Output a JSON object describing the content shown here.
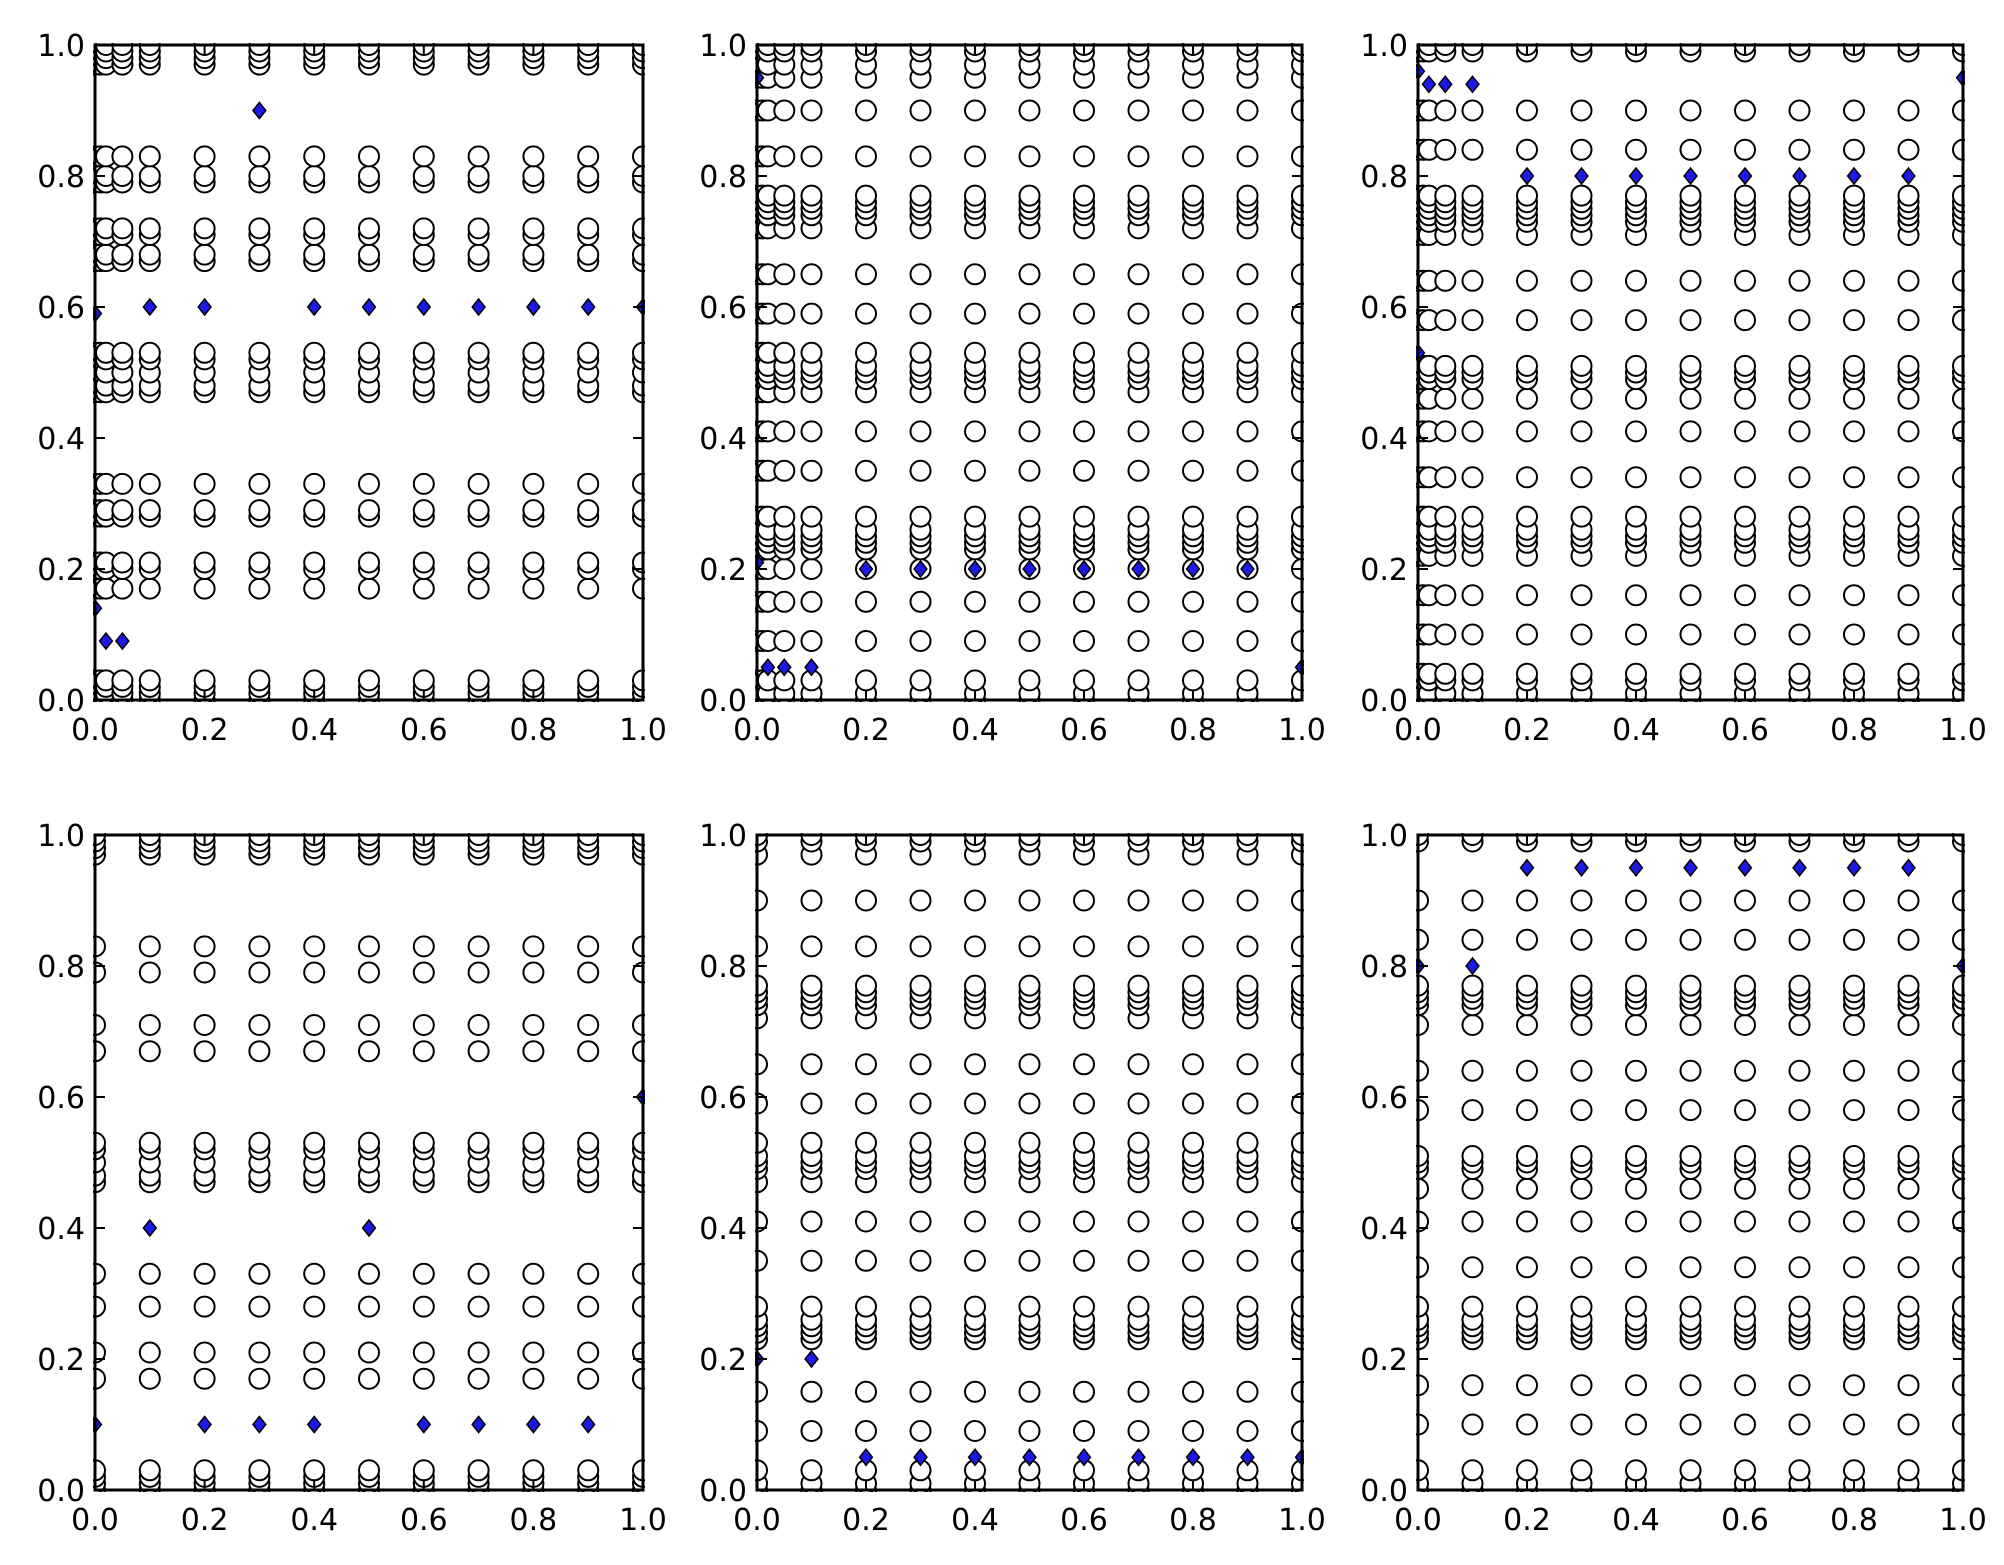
{
  "chart_data": [
    {
      "type": "scatter",
      "title": "",
      "xlabel": "",
      "ylabel": "",
      "xlim": [
        0,
        1
      ],
      "ylim": [
        0,
        1
      ],
      "grid": false,
      "legend": "none",
      "xticks": [
        "0.0",
        "0.2",
        "0.4",
        "0.6",
        "0.8",
        "1.0"
      ],
      "yticks": [
        "0.0",
        "0.2",
        "0.4",
        "0.6",
        "0.8",
        "1.0"
      ],
      "circle_columns": [
        0.0,
        0.01,
        0.02,
        0.05,
        0.1,
        0.2,
        0.3,
        0.4,
        0.5,
        0.6,
        0.7,
        0.8,
        0.9,
        1.0
      ],
      "circle_rows": [
        0.0,
        0.01,
        0.02,
        0.03,
        0.17,
        0.2,
        0.21,
        0.28,
        0.29,
        0.33,
        0.47,
        0.48,
        0.5,
        0.52,
        0.53,
        0.67,
        0.68,
        0.71,
        0.72,
        0.79,
        0.8,
        0.83,
        0.97,
        0.98,
        0.99,
        1.0
      ],
      "highlighted_points": [
        {
          "x": 0.0,
          "y": 0.14
        },
        {
          "x": 0.02,
          "y": 0.09
        },
        {
          "x": 0.05,
          "y": 0.09
        },
        {
          "x": 0.3,
          "y": 0.9
        },
        {
          "x": 0.0,
          "y": 0.59
        },
        {
          "x": 0.1,
          "y": 0.6
        },
        {
          "x": 0.2,
          "y": 0.6
        },
        {
          "x": 0.4,
          "y": 0.6
        },
        {
          "x": 0.5,
          "y": 0.6
        },
        {
          "x": 0.6,
          "y": 0.6
        },
        {
          "x": 0.7,
          "y": 0.6
        },
        {
          "x": 0.8,
          "y": 0.6
        },
        {
          "x": 0.9,
          "y": 0.6
        },
        {
          "x": 1.0,
          "y": 0.6
        }
      ]
    },
    {
      "type": "scatter",
      "title": "",
      "xlabel": "",
      "ylabel": "",
      "xlim": [
        0,
        1
      ],
      "ylim": [
        0,
        1
      ],
      "grid": false,
      "legend": "none",
      "xticks": [
        "0.0",
        "0.2",
        "0.4",
        "0.6",
        "0.8",
        "1.0"
      ],
      "yticks": [
        "0.0",
        "0.2",
        "0.4",
        "0.6",
        "0.8",
        "1.0"
      ],
      "circle_columns": [
        0.0,
        0.01,
        0.02,
        0.05,
        0.1,
        0.2,
        0.3,
        0.4,
        0.5,
        0.6,
        0.7,
        0.8,
        0.9,
        1.0
      ],
      "circle_rows": [
        0.0,
        0.01,
        0.03,
        0.09,
        0.15,
        0.2,
        0.23,
        0.24,
        0.25,
        0.26,
        0.28,
        0.35,
        0.41,
        0.47,
        0.49,
        0.5,
        0.51,
        0.53,
        0.59,
        0.65,
        0.72,
        0.74,
        0.75,
        0.76,
        0.77,
        0.83,
        0.9,
        0.95,
        0.97,
        0.99,
        1.0
      ],
      "highlighted_points": [
        {
          "x": 0.0,
          "y": 0.95
        },
        {
          "x": 0.0,
          "y": 0.21
        },
        {
          "x": 0.02,
          "y": 0.05
        },
        {
          "x": 0.05,
          "y": 0.05
        },
        {
          "x": 0.1,
          "y": 0.05
        },
        {
          "x": 0.2,
          "y": 0.2
        },
        {
          "x": 0.3,
          "y": 0.2
        },
        {
          "x": 0.4,
          "y": 0.2
        },
        {
          "x": 0.5,
          "y": 0.2
        },
        {
          "x": 0.6,
          "y": 0.2
        },
        {
          "x": 0.7,
          "y": 0.2
        },
        {
          "x": 0.8,
          "y": 0.2
        },
        {
          "x": 0.9,
          "y": 0.2
        },
        {
          "x": 1.0,
          "y": 0.05
        }
      ]
    },
    {
      "type": "scatter",
      "title": "",
      "xlabel": "",
      "ylabel": "",
      "xlim": [
        0,
        1
      ],
      "ylim": [
        0,
        1
      ],
      "grid": false,
      "legend": "none",
      "xticks": [
        "0.0",
        "0.2",
        "0.4",
        "0.6",
        "0.8",
        "1.0"
      ],
      "yticks": [
        "0.0",
        "0.2",
        "0.4",
        "0.6",
        "0.8",
        "1.0"
      ],
      "circle_columns": [
        0.0,
        0.01,
        0.02,
        0.05,
        0.1,
        0.2,
        0.3,
        0.4,
        0.5,
        0.6,
        0.7,
        0.8,
        0.9,
        1.0
      ],
      "circle_rows": [
        0.0,
        0.01,
        0.03,
        0.04,
        0.1,
        0.16,
        0.22,
        0.24,
        0.25,
        0.26,
        0.28,
        0.34,
        0.41,
        0.46,
        0.49,
        0.5,
        0.51,
        0.58,
        0.64,
        0.71,
        0.73,
        0.74,
        0.75,
        0.76,
        0.77,
        0.84,
        0.9,
        0.99,
        1.0
      ],
      "highlighted_points": [
        {
          "x": 0.0,
          "y": 0.96
        },
        {
          "x": 0.02,
          "y": 0.94
        },
        {
          "x": 0.05,
          "y": 0.94
        },
        {
          "x": 0.1,
          "y": 0.94
        },
        {
          "x": 0.0,
          "y": 0.53
        },
        {
          "x": 0.2,
          "y": 0.8
        },
        {
          "x": 0.3,
          "y": 0.8
        },
        {
          "x": 0.4,
          "y": 0.8
        },
        {
          "x": 0.5,
          "y": 0.8
        },
        {
          "x": 0.6,
          "y": 0.8
        },
        {
          "x": 0.7,
          "y": 0.8
        },
        {
          "x": 0.8,
          "y": 0.8
        },
        {
          "x": 0.9,
          "y": 0.8
        },
        {
          "x": 1.0,
          "y": 0.95
        }
      ]
    },
    {
      "type": "scatter",
      "title": "",
      "xlabel": "",
      "ylabel": "",
      "xlim": [
        0,
        1
      ],
      "ylim": [
        0,
        1
      ],
      "grid": false,
      "legend": "none",
      "xticks": [
        "0.0",
        "0.2",
        "0.4",
        "0.6",
        "0.8",
        "1.0"
      ],
      "yticks": [
        "0.0",
        "0.2",
        "0.4",
        "0.6",
        "0.8",
        "1.0"
      ],
      "circle_columns": [
        0.0,
        0.1,
        0.2,
        0.3,
        0.4,
        0.5,
        0.6,
        0.7,
        0.8,
        0.9,
        1.0
      ],
      "circle_rows": [
        0.0,
        0.01,
        0.02,
        0.03,
        0.17,
        0.21,
        0.28,
        0.33,
        0.47,
        0.48,
        0.5,
        0.52,
        0.53,
        0.67,
        0.71,
        0.79,
        0.83,
        0.97,
        0.98,
        0.99,
        1.0
      ],
      "highlighted_points": [
        {
          "x": 0.0,
          "y": 0.1
        },
        {
          "x": 0.1,
          "y": 0.4
        },
        {
          "x": 0.2,
          "y": 0.1
        },
        {
          "x": 0.3,
          "y": 0.1
        },
        {
          "x": 0.4,
          "y": 0.1
        },
        {
          "x": 0.5,
          "y": 0.4
        },
        {
          "x": 0.6,
          "y": 0.1
        },
        {
          "x": 0.7,
          "y": 0.1
        },
        {
          "x": 0.8,
          "y": 0.1
        },
        {
          "x": 0.9,
          "y": 0.1
        },
        {
          "x": 1.0,
          "y": 0.6
        }
      ]
    },
    {
      "type": "scatter",
      "title": "",
      "xlabel": "",
      "ylabel": "",
      "xlim": [
        0,
        1
      ],
      "ylim": [
        0,
        1
      ],
      "grid": false,
      "legend": "none",
      "xticks": [
        "0.0",
        "0.2",
        "0.4",
        "0.6",
        "0.8",
        "1.0"
      ],
      "yticks": [
        "0.0",
        "0.2",
        "0.4",
        "0.6",
        "0.8",
        "1.0"
      ],
      "circle_columns": [
        0.0,
        0.1,
        0.2,
        0.3,
        0.4,
        0.5,
        0.6,
        0.7,
        0.8,
        0.9,
        1.0
      ],
      "circle_rows": [
        0.0,
        0.01,
        0.03,
        0.09,
        0.15,
        0.23,
        0.24,
        0.25,
        0.26,
        0.28,
        0.35,
        0.41,
        0.47,
        0.49,
        0.5,
        0.51,
        0.53,
        0.59,
        0.65,
        0.72,
        0.74,
        0.75,
        0.76,
        0.77,
        0.83,
        0.9,
        0.97,
        0.99,
        1.0
      ],
      "highlighted_points": [
        {
          "x": 0.0,
          "y": 0.2
        },
        {
          "x": 0.1,
          "y": 0.2
        },
        {
          "x": 0.2,
          "y": 0.05
        },
        {
          "x": 0.3,
          "y": 0.05
        },
        {
          "x": 0.4,
          "y": 0.05
        },
        {
          "x": 0.5,
          "y": 0.05
        },
        {
          "x": 0.6,
          "y": 0.05
        },
        {
          "x": 0.7,
          "y": 0.05
        },
        {
          "x": 0.8,
          "y": 0.05
        },
        {
          "x": 0.9,
          "y": 0.05
        },
        {
          "x": 1.0,
          "y": 0.05
        }
      ]
    },
    {
      "type": "scatter",
      "title": "",
      "xlabel": "",
      "ylabel": "",
      "xlim": [
        0,
        1
      ],
      "ylim": [
        0,
        1
      ],
      "grid": false,
      "legend": "none",
      "xticks": [
        "0.0",
        "0.2",
        "0.4",
        "0.6",
        "0.8",
        "1.0"
      ],
      "yticks": [
        "0.0",
        "0.2",
        "0.4",
        "0.6",
        "0.8",
        "1.0"
      ],
      "circle_columns": [
        0.0,
        0.1,
        0.2,
        0.3,
        0.4,
        0.5,
        0.6,
        0.7,
        0.8,
        0.9,
        1.0
      ],
      "circle_rows": [
        0.0,
        0.01,
        0.03,
        0.1,
        0.16,
        0.23,
        0.24,
        0.25,
        0.26,
        0.28,
        0.34,
        0.41,
        0.46,
        0.49,
        0.5,
        0.51,
        0.58,
        0.64,
        0.71,
        0.74,
        0.75,
        0.76,
        0.77,
        0.84,
        0.9,
        0.99,
        1.0
      ],
      "highlighted_points": [
        {
          "x": 0.0,
          "y": 0.8
        },
        {
          "x": 0.1,
          "y": 0.8
        },
        {
          "x": 0.2,
          "y": 0.95
        },
        {
          "x": 0.3,
          "y": 0.95
        },
        {
          "x": 0.4,
          "y": 0.95
        },
        {
          "x": 0.5,
          "y": 0.95
        },
        {
          "x": 0.6,
          "y": 0.95
        },
        {
          "x": 0.7,
          "y": 0.95
        },
        {
          "x": 0.8,
          "y": 0.95
        },
        {
          "x": 0.9,
          "y": 0.95
        },
        {
          "x": 1.0,
          "y": 0.8
        }
      ]
    }
  ],
  "colors": {
    "circle_edge": "#000000",
    "circle_fill": "#ffffff",
    "highlight_fill": "#1a1ae6",
    "highlight_edge": "#000000",
    "axes": "#000000"
  }
}
